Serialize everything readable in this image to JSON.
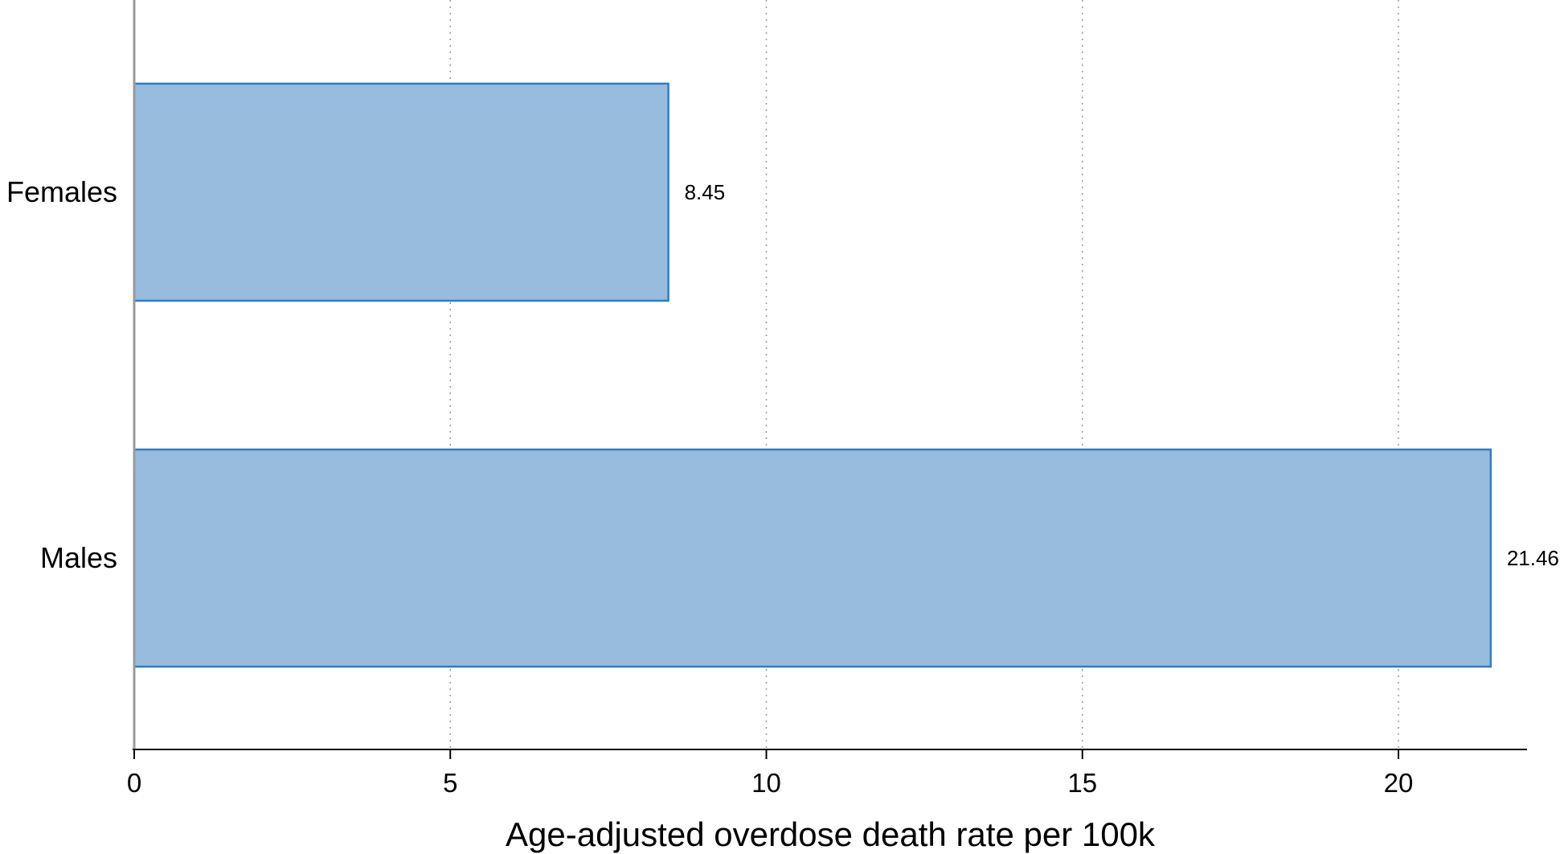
{
  "chart_data": {
    "type": "bar",
    "orientation": "horizontal",
    "categories": [
      "Females",
      "Males"
    ],
    "values": [
      8.45,
      21.46
    ],
    "data_labels": [
      "8.45",
      "21.46"
    ],
    "title": "",
    "xlabel": "Age-adjusted overdose death rate per 100k",
    "ylabel": "",
    "xlim": [
      0,
      22
    ],
    "xticks": [
      0,
      5,
      10,
      15,
      20
    ],
    "xtick_labels": [
      "0",
      "5",
      "10",
      "15",
      "20"
    ],
    "grid": "vertical dotted",
    "legend": "none",
    "colors": {
      "bar_fill": "#97bcdd",
      "bar_stroke": "#2e7fbf",
      "grid": "#9a9a9a",
      "axis": "#000000",
      "y_axis": "#9a9a9a"
    }
  }
}
